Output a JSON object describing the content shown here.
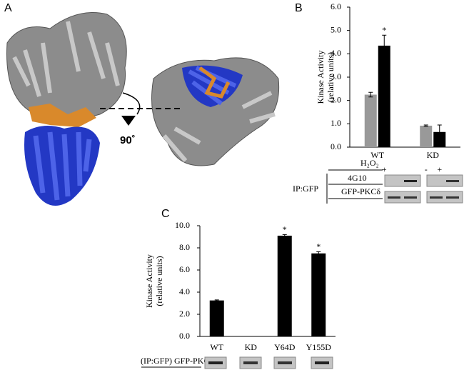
{
  "panel_labels": [
    "A",
    "B",
    "C"
  ],
  "rotation_label": "90˚",
  "blot_labels": {
    "treatment": "H₂O₂",
    "rows": [
      "4G10",
      "GFP-PKCδ"
    ],
    "ip": "IP:GFP",
    "panel_c": "(IP:GFP) GFP-PKCδ"
  },
  "chart_data": [
    {
      "type": "bar",
      "y_label": [
        "Kinase Activity",
        "(relative units)"
      ],
      "categories": [
        "WT",
        "KD"
      ],
      "series": [
        {
          "name": "-",
          "color": "#999999",
          "values": [
            2.25,
            0.92
          ],
          "errors": [
            0.1,
            0.03
          ],
          "markers": [
            null,
            null
          ]
        },
        {
          "name": "+",
          "color": "#000000",
          "values": [
            4.35,
            0.65
          ],
          "errors": [
            0.45,
            0.3
          ],
          "markers": [
            "*",
            null
          ]
        }
      ],
      "ylim": [
        0,
        6
      ],
      "yticks": [
        {
          "value": 0,
          "label": "0.0"
        },
        {
          "value": 1,
          "label": "1.0"
        },
        {
          "value": 2,
          "label": "2.0"
        },
        {
          "value": 3,
          "label": "3.0"
        },
        {
          "value": 4,
          "label": "4.0"
        },
        {
          "value": 5,
          "label": "5.0"
        },
        {
          "value": 6,
          "label": "6.0"
        }
      ]
    },
    {
      "type": "bar",
      "y_label": [
        "Kinase Activity",
        "(relative units)"
      ],
      "categories": [
        "WT",
        "KD",
        "Y64D",
        "Y155D"
      ],
      "series": [
        {
          "color": "#000000",
          "values": [
            3.25,
            0,
            9.1,
            7.5
          ],
          "errors": [
            0.05,
            0,
            0.1,
            0.15
          ],
          "markers": [
            null,
            null,
            "*",
            "*"
          ]
        }
      ],
      "ylim": [
        0,
        10
      ],
      "yticks": [
        {
          "value": 0,
          "label": "0.0"
        },
        {
          "value": 2,
          "label": "2.0"
        },
        {
          "value": 4,
          "label": "4.0"
        },
        {
          "value": 6,
          "label": "6.0"
        },
        {
          "value": 8,
          "label": "8.0"
        },
        {
          "value": 10,
          "label": "10.0"
        }
      ]
    }
  ]
}
